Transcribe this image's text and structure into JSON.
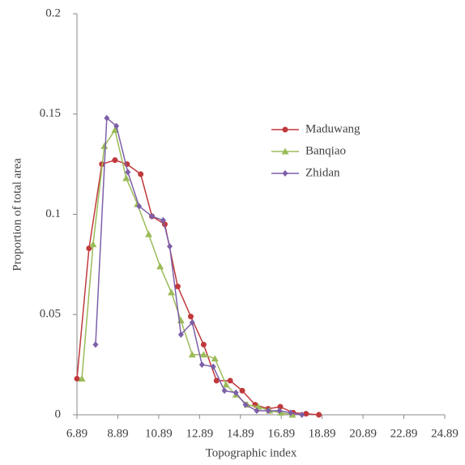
{
  "chart_data": {
    "type": "line",
    "xlabel": "Topographic index",
    "ylabel": "Proportion of total area",
    "xlim": [
      6.89,
      24.89
    ],
    "xticks": [
      6.89,
      8.89,
      10.89,
      12.89,
      14.89,
      16.89,
      18.89,
      20.89,
      22.89,
      24.89
    ],
    "ylim": [
      0,
      0.2
    ],
    "yticks": [
      0,
      0.05,
      0.1,
      0.15,
      0.2
    ],
    "grid": false,
    "legend": "upper right",
    "series": [
      {
        "name": "Maduwang",
        "color": "#c0393b",
        "marker": "circle",
        "x": [
          6.89,
          7.48,
          8.11,
          8.75,
          9.34,
          10.01,
          10.56,
          11.19,
          11.82,
          12.46,
          13.09,
          13.72,
          14.39,
          14.98,
          15.61,
          16.25,
          16.84,
          17.47,
          18.1,
          18.73
        ],
        "values": [
          0.018,
          0.083,
          0.125,
          0.127,
          0.125,
          0.12,
          0.099,
          0.095,
          0.064,
          0.049,
          0.035,
          0.017,
          0.017,
          0.012,
          0.005,
          0.003,
          0.004,
          0.001,
          0.0005,
          0
        ]
      },
      {
        "name": "Banqiao",
        "color": "#9bbb59",
        "marker": "triangle",
        "x": [
          7.13,
          7.68,
          8.23,
          8.75,
          9.3,
          9.85,
          10.4,
          10.96,
          11.51,
          11.98,
          12.53,
          13.09,
          13.64,
          14.19,
          14.67,
          15.22,
          15.77,
          16.32,
          16.88,
          17.43
        ],
        "values": [
          0.018,
          0.085,
          0.134,
          0.142,
          0.118,
          0.105,
          0.09,
          0.074,
          0.061,
          0.047,
          0.03,
          0.03,
          0.028,
          0.015,
          0.01,
          0.005,
          0.004,
          0.002,
          0.001,
          0
        ]
      },
      {
        "name": "Zhidan",
        "color": "#7d5fa8",
        "marker": "diamond",
        "x": [
          7.8,
          8.35,
          8.82,
          9.38,
          9.93,
          10.56,
          11.11,
          11.43,
          11.98,
          12.53,
          13.01,
          13.56,
          14.11,
          14.67,
          15.14,
          15.69,
          16.25,
          16.8,
          17.35,
          17.9
        ],
        "values": [
          0.035,
          0.148,
          0.144,
          0.121,
          0.104,
          0.099,
          0.097,
          0.084,
          0.04,
          0.046,
          0.025,
          0.024,
          0.012,
          0.011,
          0.005,
          0.002,
          0.002,
          0.002,
          0.001,
          0
        ]
      }
    ]
  }
}
